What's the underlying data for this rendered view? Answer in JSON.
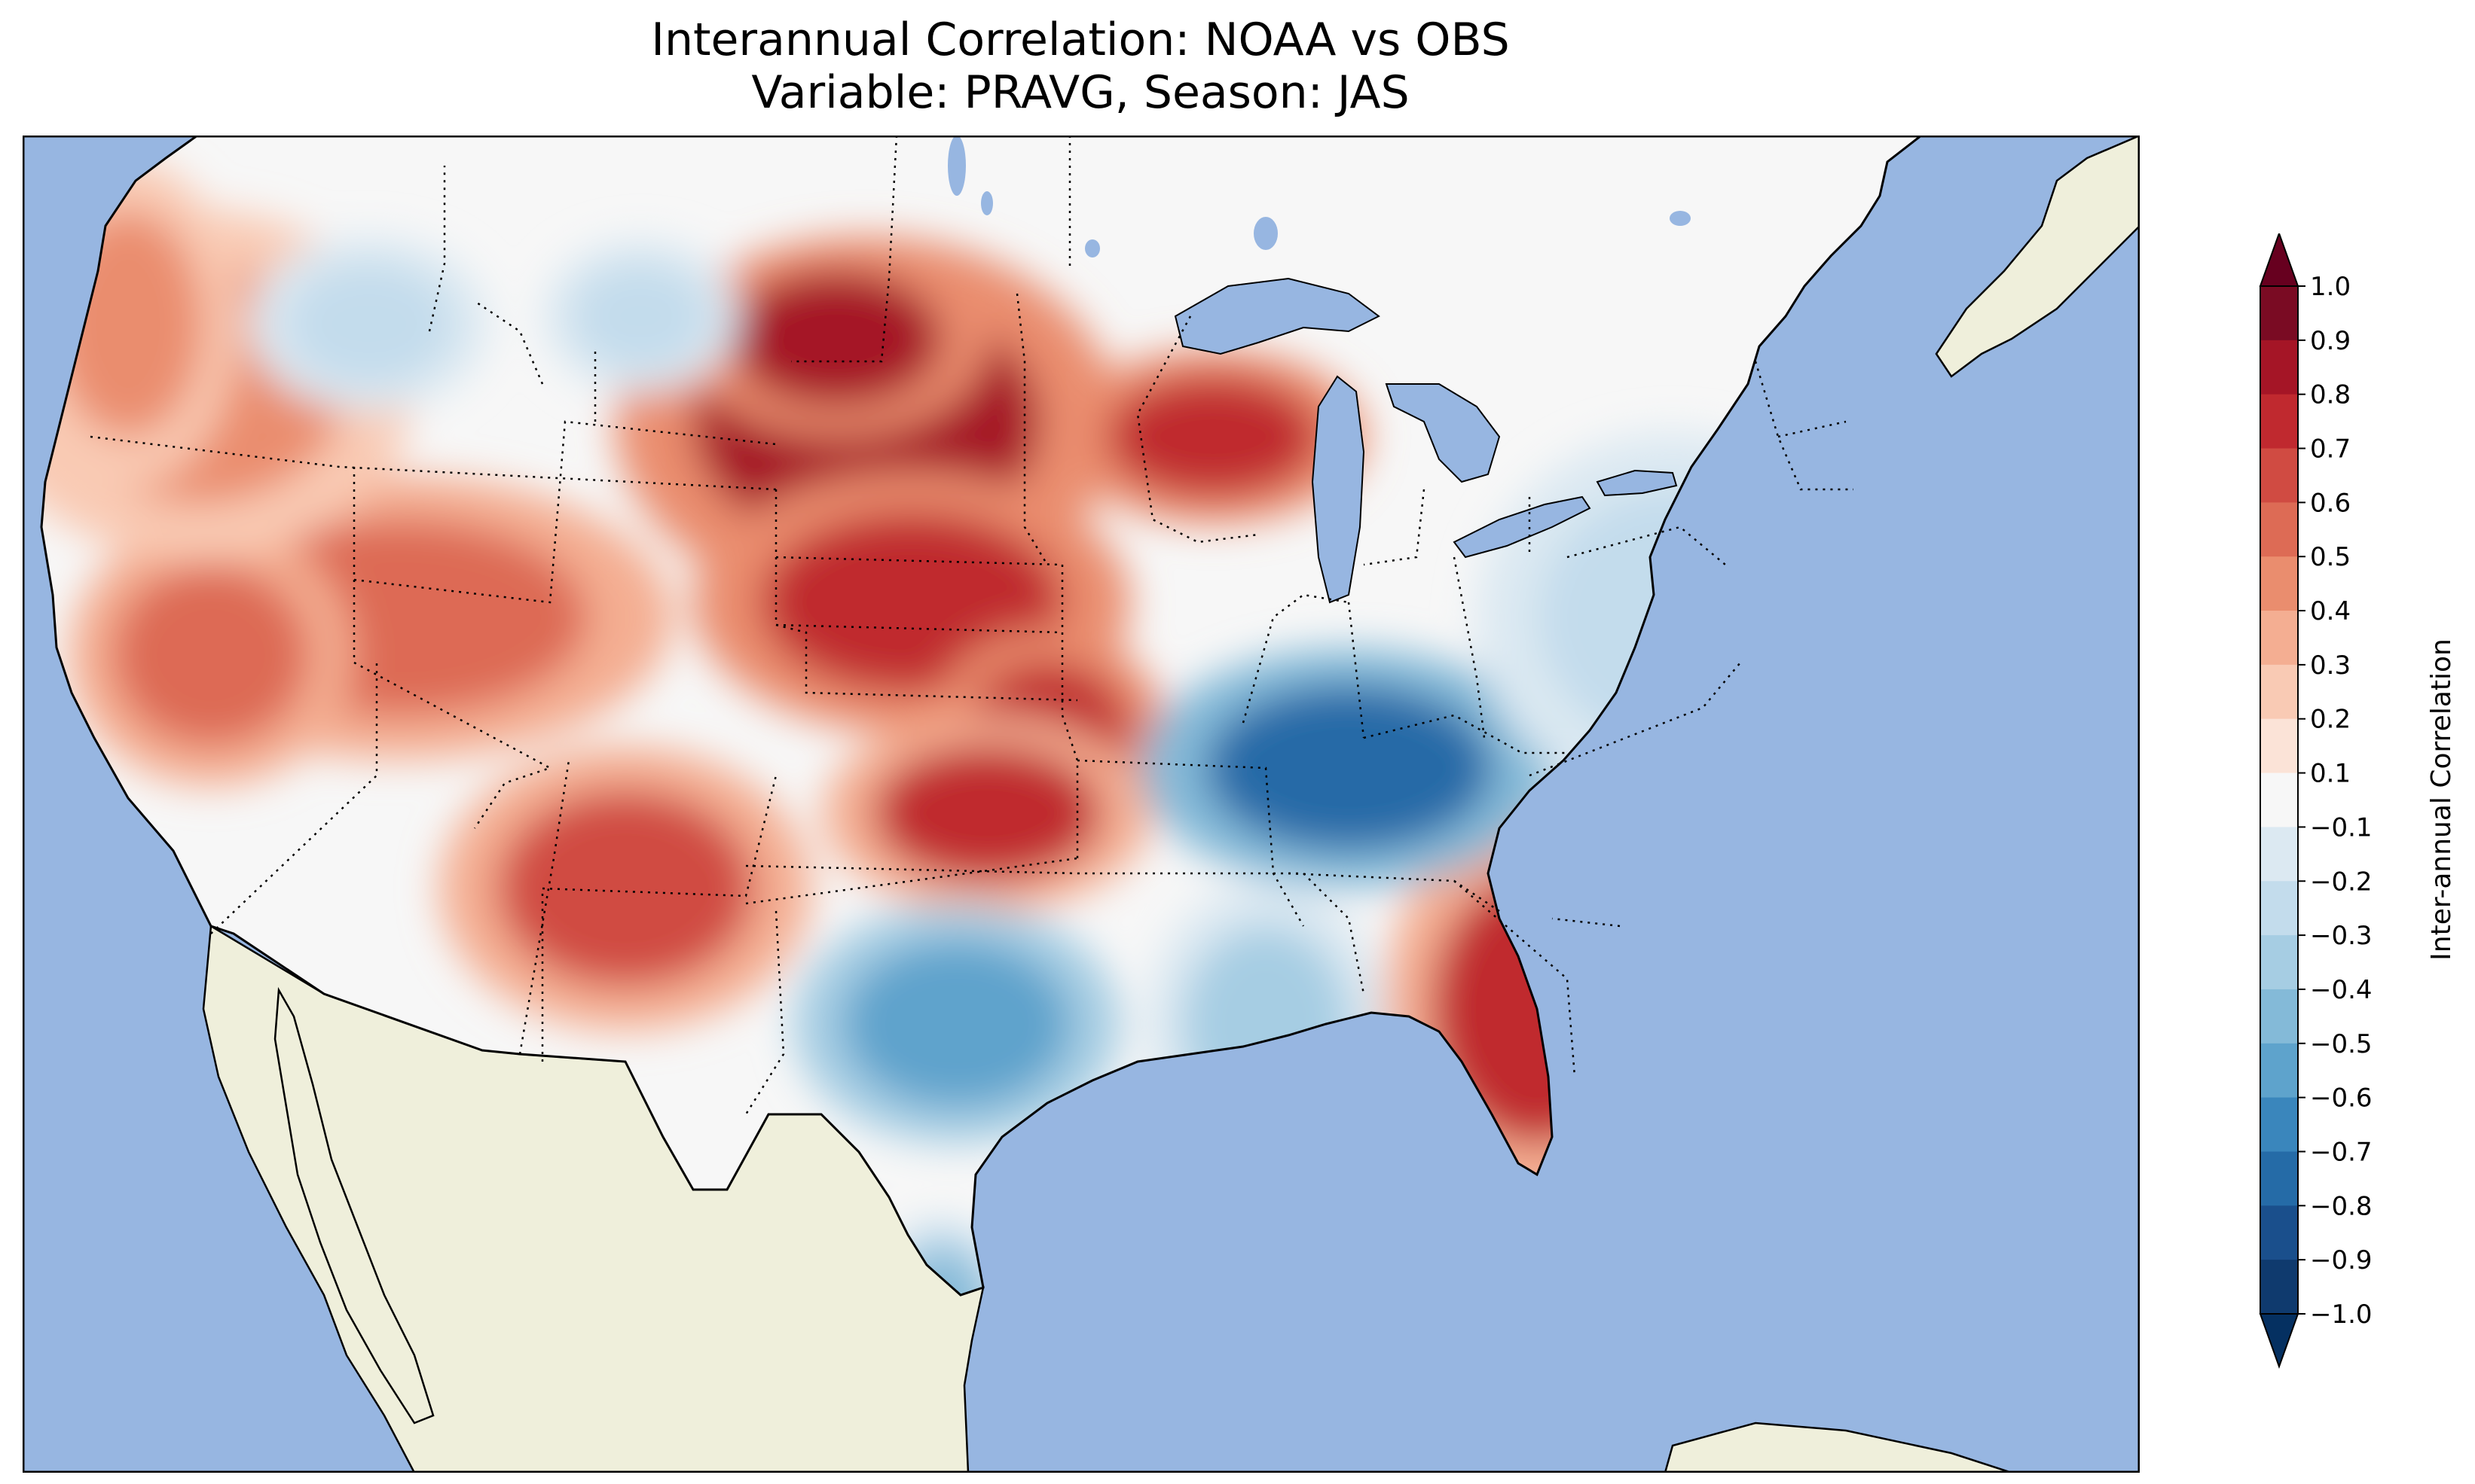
{
  "figure": {
    "title_line1": "Interannual Correlation: NOAA vs OBS",
    "title_line2": "Variable: PRAVG, Season: JAS"
  },
  "map": {
    "region": "Contiguous United States",
    "ocean_color": "#97b6e1",
    "land_color": "#efefdb",
    "coastline_color": "#000000",
    "border_style": "dotted",
    "field_regions": [
      {
        "name": "northern-plains",
        "value": 0.8
      },
      {
        "name": "nebraska-kansas",
        "value": 0.75
      },
      {
        "name": "wisconsin",
        "value": 0.75
      },
      {
        "name": "oklahoma-arkansas",
        "value": 0.7
      },
      {
        "name": "georgia-carolinas",
        "value": 0.7
      },
      {
        "name": "great-basin",
        "value": 0.55
      },
      {
        "name": "new-mexico",
        "value": 0.6
      },
      {
        "name": "pacific-northwest",
        "value": 0.4
      },
      {
        "name": "ohio-valley",
        "value": -0.75
      },
      {
        "name": "north-carolina-east",
        "value": -0.7
      },
      {
        "name": "texas-central",
        "value": -0.55
      },
      {
        "name": "mississippi",
        "value": -0.35
      },
      {
        "name": "northeast",
        "value": -0.3
      },
      {
        "name": "south-texas",
        "value": -0.5
      },
      {
        "name": "montana-west",
        "value": -0.25
      }
    ]
  },
  "colorbar": {
    "label": "Inter-annual Correlation",
    "levels": [
      1.0,
      0.9,
      0.8,
      0.7,
      0.6,
      0.5,
      0.4,
      0.3,
      0.2,
      0.1,
      -0.1,
      -0.2,
      -0.3,
      -0.4,
      -0.5,
      -0.6,
      -0.7,
      -0.8,
      -0.9,
      -1.0
    ],
    "tick_labels": [
      "1.0",
      "0.9",
      "0.8",
      "0.7",
      "0.6",
      "0.5",
      "0.4",
      "0.3",
      "0.2",
      "0.1",
      "−0.1",
      "−0.2",
      "−0.3",
      "−0.4",
      "−0.5",
      "−0.6",
      "−0.7",
      "−0.8",
      "−0.9",
      "−1.0"
    ],
    "colors": [
      "#7a0b23",
      "#a51526",
      "#c0292f",
      "#d04b42",
      "#dd6b55",
      "#ea8d6e",
      "#f4ae92",
      "#f9cab4",
      "#fbe3d7",
      "#f7f7f7",
      "#dce9f2",
      "#c3dcec",
      "#a6cde3",
      "#84bad8",
      "#5ea3cc",
      "#3a86bc",
      "#256ba7",
      "#1a4f8c",
      "#0f3a6e"
    ],
    "extend_max_color": "#67001f",
    "extend_min_color": "#053061"
  }
}
